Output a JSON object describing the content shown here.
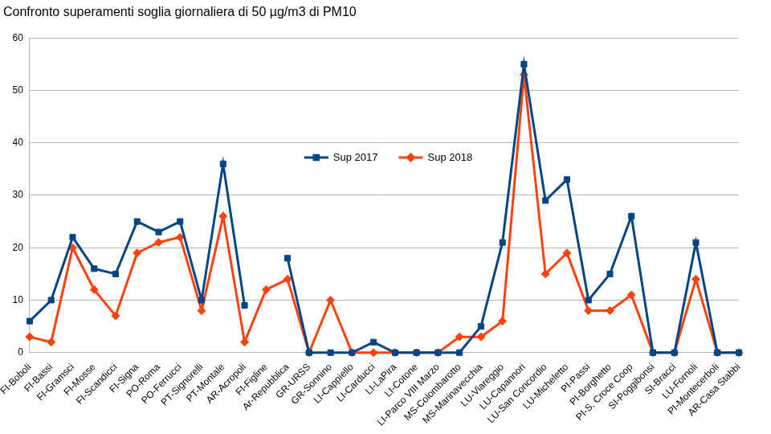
{
  "chart_data": {
    "type": "line",
    "title": "Confronto superamenti soglia giornaliera di 50 µg/m3 di PM10",
    "categories": [
      "FI-Boboli",
      "FI-Bassi",
      "FI-Gramsci",
      "FI-Mosse",
      "FI-Scandicci",
      "FI-Signa",
      "PO-Roma",
      "PO-Ferrucci",
      "PT-Signorelli",
      "PT-Montale",
      "AR-Acropoli",
      "FI-Figline",
      "Ar-Repubblica",
      "GR-URSS",
      "GR-Sonnino",
      "LI-Cappiello",
      "LI-Carducci",
      "LI-LaPira",
      "LI-Cotone",
      "LI-Parco VIII Marzo",
      "MS-Colombarotto",
      "MS-Marinavecchia",
      "LU-Viareggio",
      "LU-Capannori",
      "LU-San Concordio",
      "LU-Micheletto",
      "PI-Passi",
      "PI-Borghetto",
      "PI-S. Croce Coop",
      "SI-Poggibonsi",
      "SI-Bracci",
      "LU-Fornoli",
      "PI-Montecerboli",
      "AR-Casa Stabbi"
    ],
    "series": [
      {
        "name": "Sup 2017",
        "color": "#004586",
        "marker": "square",
        "line_style": "solid",
        "values": [
          6,
          10,
          22,
          16,
          15,
          25,
          23,
          25,
          10,
          36,
          9,
          null,
          18,
          0,
          0,
          0,
          2,
          0,
          0,
          0,
          0,
          5,
          21,
          55,
          29,
          33,
          10,
          15,
          26,
          0,
          0,
          21,
          0,
          0
        ]
      },
      {
        "name": "Sup 2018",
        "color": "#ff420e",
        "marker": "diamond",
        "line_style": "solid",
        "values": [
          3,
          2,
          20,
          12,
          7,
          19,
          21,
          22,
          8,
          26,
          2,
          12,
          14,
          0,
          10,
          0,
          0,
          0,
          0,
          0,
          3,
          3,
          6,
          53,
          15,
          19,
          8,
          8,
          11,
          0,
          0,
          14,
          0,
          0
        ]
      }
    ],
    "ylim": [
      0,
      60
    ],
    "yticks": [
      0,
      10,
      20,
      30,
      40,
      50,
      60
    ],
    "grid": true,
    "legend": "center"
  }
}
